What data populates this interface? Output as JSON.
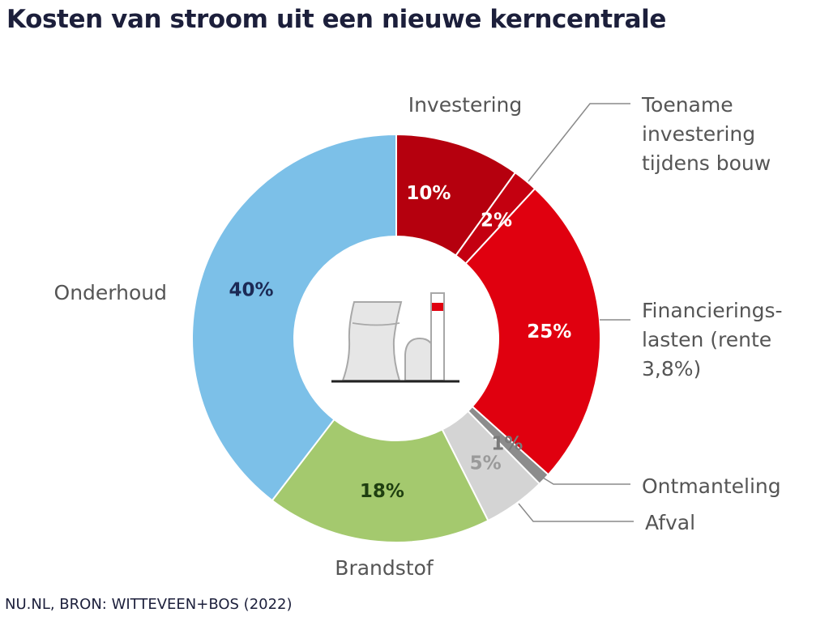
{
  "title": "Kosten van stroom uit een nieuwe kerncentrale",
  "source": "NU.NL, BRON: WITTEVEEN+BOS (2022)",
  "chart_data": {
    "type": "pie",
    "title": "Kosten van stroom uit een nieuwe kerncentrale",
    "donut": true,
    "center_icon": "nuclear-power-plant-icon",
    "slices": [
      {
        "key": "investering",
        "label": "Investering",
        "value": 10,
        "value_label": "10%",
        "color": "#b5000e",
        "text_color": "#ffffff"
      },
      {
        "key": "toename",
        "label": "Toename investering tijdens bouw",
        "label_lines": [
          "Toename",
          "investering",
          "tijdens bouw"
        ],
        "value": 2,
        "value_label": "2%",
        "color": "#c40010",
        "text_color": "#ffffff"
      },
      {
        "key": "financiering",
        "label": "Financierings-lasten (rente 3,8%)",
        "label_lines": [
          "Financierings-",
          "lasten (rente",
          "3,8%)"
        ],
        "value": 25,
        "value_label": "25%",
        "color": "#e0000f",
        "text_color": "#ffffff"
      },
      {
        "key": "ontmanteling",
        "label": "Ontmanteling",
        "value": 1,
        "value_label": "1%",
        "color": "#8c8c8c",
        "text_color": "#7a7a7a"
      },
      {
        "key": "afval",
        "label": "Afval",
        "value": 5,
        "value_label": "5%",
        "color": "#d4d4d4",
        "text_color": "#9a9a9a"
      },
      {
        "key": "brandstof",
        "label": "Brandstof",
        "value": 18,
        "value_label": "18%",
        "color": "#a4c96e",
        "text_color": "#1f3f10"
      },
      {
        "key": "onderhoud",
        "label": "Onderhoud",
        "value": 40,
        "value_label": "40%",
        "color": "#7cc0e8",
        "text_color": "#1c2a55"
      }
    ]
  }
}
